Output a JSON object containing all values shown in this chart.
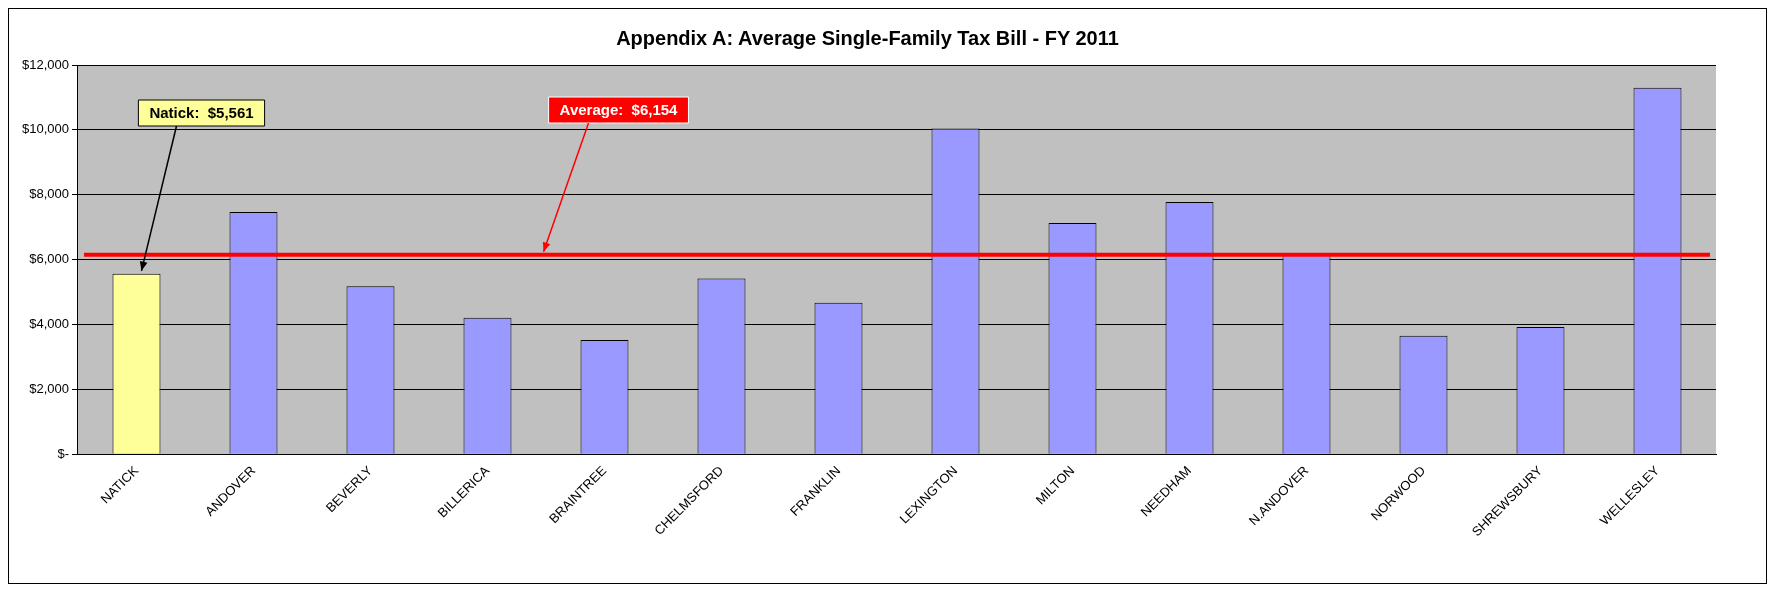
{
  "chart_data": {
    "type": "bar",
    "title": "Appendix A: Average Single-Family Tax Bill - FY 2011",
    "categories": [
      "NATICK",
      "ANDOVER",
      "BEVERLY",
      "BILLERICA",
      "BRAINTREE",
      "CHELMSFORD",
      "FRANKLIN",
      "LEXINGTON",
      "MILTON",
      "NEEDHAM",
      "N.ANDOVER",
      "NORWOOD",
      "SHREWSBURY",
      "WELLESLEY"
    ],
    "values": [
      5561,
      7470,
      5180,
      4210,
      3520,
      5420,
      4670,
      10040,
      7130,
      7780,
      6160,
      3650,
      3920,
      11300
    ],
    "colors": [
      "#ffff99",
      "#9999ff",
      "#9999ff",
      "#9999ff",
      "#9999ff",
      "#9999ff",
      "#9999ff",
      "#9999ff",
      "#9999ff",
      "#9999ff",
      "#9999ff",
      "#9999ff",
      "#9999ff",
      "#9999ff"
    ],
    "ylim": [
      0,
      12000
    ],
    "yticks": [
      {
        "value": 0,
        "label": "$-"
      },
      {
        "value": 2000,
        "label": "$2,000"
      },
      {
        "value": 4000,
        "label": "$4,000"
      },
      {
        "value": 6000,
        "label": "$6,000"
      },
      {
        "value": 8000,
        "label": "$8,000"
      },
      {
        "value": 10000,
        "label": "$10,000"
      },
      {
        "value": 12000,
        "label": "$12,000"
      }
    ],
    "grid": "y",
    "legend": false,
    "ref_lines": [
      {
        "axis": "y",
        "value": 6154,
        "label": "Average:  $6,154",
        "color": "#ff0000"
      }
    ],
    "annotations": [
      {
        "text": "Natick:  $5,561",
        "x": "NATICK",
        "y": 5561
      }
    ]
  }
}
